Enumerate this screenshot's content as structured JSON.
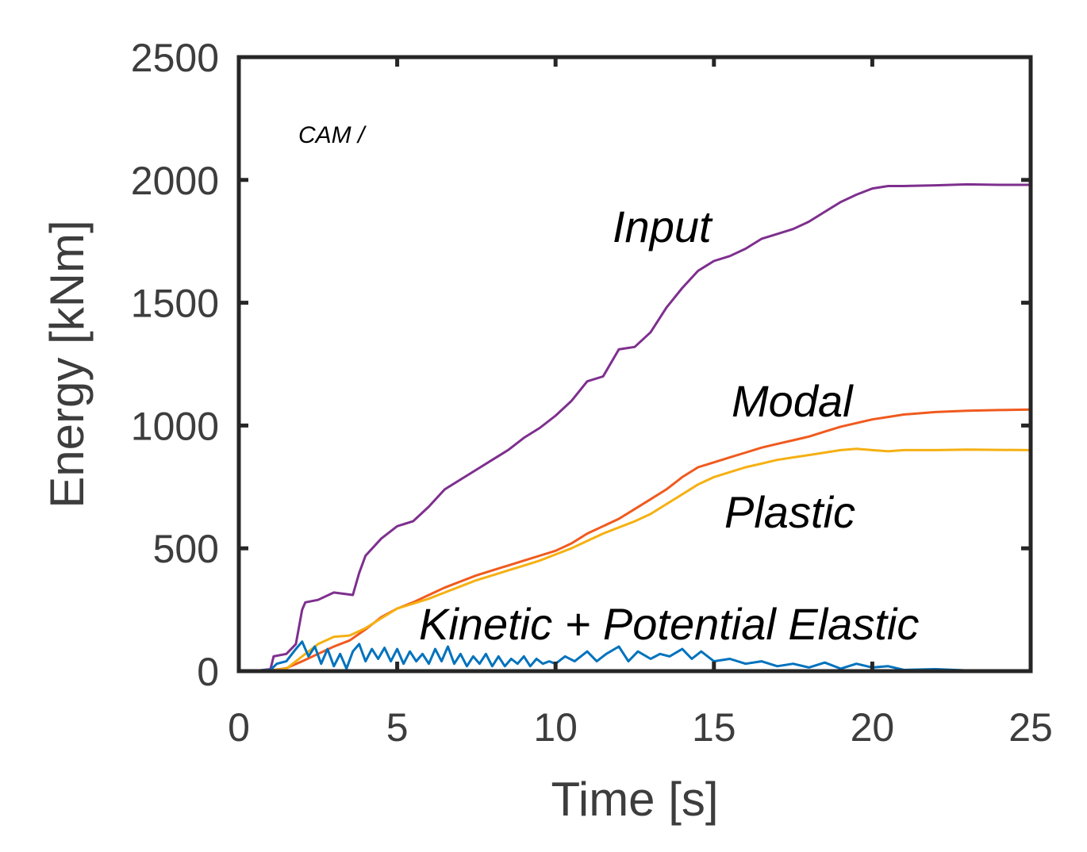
{
  "chart_data": {
    "type": "line",
    "xlabel": "Time [s]",
    "ylabel": "Energy [kNm]",
    "xlim": [
      0,
      25
    ],
    "ylim": [
      0,
      2500
    ],
    "xticks": [
      0,
      5,
      10,
      15,
      20,
      25
    ],
    "yticks": [
      0,
      500,
      1000,
      1500,
      2000,
      2500
    ],
    "grid": false,
    "legend": "inline labels",
    "annotation": "CAM /",
    "series": [
      {
        "name": "Input",
        "color": "#7E2F8E",
        "points": [
          [
            0,
            0
          ],
          [
            0.6,
            2
          ],
          [
            1.0,
            8
          ],
          [
            1.1,
            60
          ],
          [
            1.5,
            70
          ],
          [
            1.8,
            110
          ],
          [
            2.0,
            250
          ],
          [
            2.1,
            280
          ],
          [
            2.5,
            290
          ],
          [
            3.0,
            320
          ],
          [
            3.6,
            310
          ],
          [
            3.8,
            400
          ],
          [
            4.0,
            470
          ],
          [
            4.5,
            540
          ],
          [
            5.0,
            590
          ],
          [
            5.5,
            610
          ],
          [
            6.0,
            670
          ],
          [
            6.5,
            740
          ],
          [
            7.0,
            780
          ],
          [
            7.5,
            820
          ],
          [
            8.0,
            860
          ],
          [
            8.5,
            900
          ],
          [
            9.0,
            950
          ],
          [
            9.5,
            990
          ],
          [
            10.0,
            1040
          ],
          [
            10.5,
            1100
          ],
          [
            11.0,
            1180
          ],
          [
            11.5,
            1200
          ],
          [
            12.0,
            1310
          ],
          [
            12.5,
            1320
          ],
          [
            13.0,
            1380
          ],
          [
            13.5,
            1480
          ],
          [
            14.0,
            1560
          ],
          [
            14.5,
            1630
          ],
          [
            15.0,
            1670
          ],
          [
            15.5,
            1690
          ],
          [
            16.0,
            1720
          ],
          [
            16.5,
            1760
          ],
          [
            17.0,
            1780
          ],
          [
            17.5,
            1800
          ],
          [
            18.0,
            1830
          ],
          [
            18.5,
            1870
          ],
          [
            19.0,
            1910
          ],
          [
            19.5,
            1940
          ],
          [
            20.0,
            1965
          ],
          [
            20.5,
            1975
          ],
          [
            21.0,
            1975
          ],
          [
            22.0,
            1978
          ],
          [
            23.0,
            1982
          ],
          [
            24.0,
            1980
          ],
          [
            25.0,
            1980
          ]
        ]
      },
      {
        "name": "Modal",
        "color": "#F05A1E",
        "points": [
          [
            0,
            0
          ],
          [
            1.0,
            3
          ],
          [
            1.5,
            12
          ],
          [
            2.0,
            40
          ],
          [
            2.5,
            70
          ],
          [
            3.0,
            100
          ],
          [
            3.5,
            125
          ],
          [
            4.0,
            170
          ],
          [
            4.5,
            220
          ],
          [
            5.0,
            255
          ],
          [
            5.5,
            280
          ],
          [
            6.0,
            310
          ],
          [
            6.5,
            340
          ],
          [
            7.0,
            365
          ],
          [
            7.5,
            390
          ],
          [
            8.0,
            410
          ],
          [
            8.5,
            430
          ],
          [
            9.0,
            450
          ],
          [
            9.5,
            470
          ],
          [
            10.0,
            490
          ],
          [
            10.5,
            520
          ],
          [
            11.0,
            560
          ],
          [
            11.5,
            590
          ],
          [
            12.0,
            620
          ],
          [
            12.5,
            660
          ],
          [
            13.0,
            700
          ],
          [
            13.5,
            740
          ],
          [
            14.0,
            790
          ],
          [
            14.5,
            830
          ],
          [
            15.0,
            850
          ],
          [
            15.5,
            870
          ],
          [
            16.0,
            890
          ],
          [
            16.5,
            910
          ],
          [
            17.0,
            925
          ],
          [
            17.5,
            940
          ],
          [
            18.0,
            955
          ],
          [
            18.5,
            975
          ],
          [
            19.0,
            995
          ],
          [
            19.5,
            1010
          ],
          [
            20.0,
            1025
          ],
          [
            20.5,
            1035
          ],
          [
            21.0,
            1045
          ],
          [
            22.0,
            1055
          ],
          [
            23.0,
            1060
          ],
          [
            24.0,
            1063
          ],
          [
            25.0,
            1065
          ]
        ]
      },
      {
        "name": "Plastic",
        "color": "#F5B012",
        "points": [
          [
            0,
            0
          ],
          [
            1.0,
            2
          ],
          [
            1.5,
            10
          ],
          [
            2.0,
            60
          ],
          [
            2.5,
            110
          ],
          [
            3.0,
            140
          ],
          [
            3.5,
            145
          ],
          [
            4.0,
            175
          ],
          [
            4.5,
            215
          ],
          [
            5.0,
            255
          ],
          [
            5.5,
            275
          ],
          [
            6.0,
            295
          ],
          [
            6.5,
            320
          ],
          [
            7.0,
            345
          ],
          [
            7.5,
            370
          ],
          [
            8.0,
            390
          ],
          [
            8.5,
            410
          ],
          [
            9.0,
            430
          ],
          [
            9.5,
            450
          ],
          [
            10.0,
            475
          ],
          [
            10.5,
            500
          ],
          [
            11.0,
            530
          ],
          [
            11.5,
            560
          ],
          [
            12.0,
            585
          ],
          [
            12.5,
            610
          ],
          [
            13.0,
            640
          ],
          [
            13.5,
            680
          ],
          [
            14.0,
            720
          ],
          [
            14.5,
            760
          ],
          [
            15.0,
            790
          ],
          [
            15.5,
            810
          ],
          [
            16.0,
            830
          ],
          [
            16.5,
            845
          ],
          [
            17.0,
            860
          ],
          [
            17.5,
            870
          ],
          [
            18.0,
            880
          ],
          [
            18.5,
            890
          ],
          [
            19.0,
            900
          ],
          [
            19.5,
            905
          ],
          [
            20.0,
            900
          ],
          [
            20.5,
            895
          ],
          [
            21.0,
            900
          ],
          [
            22.0,
            900
          ],
          [
            23.0,
            902
          ],
          [
            24.0,
            901
          ],
          [
            25.0,
            900
          ]
        ]
      },
      {
        "name": "Kinetic + Potential Elastic",
        "color": "#0072BD",
        "points": [
          [
            0,
            0
          ],
          [
            1.0,
            5
          ],
          [
            1.2,
            30
          ],
          [
            1.5,
            40
          ],
          [
            1.8,
            90
          ],
          [
            2.0,
            120
          ],
          [
            2.2,
            60
          ],
          [
            2.4,
            100
          ],
          [
            2.6,
            30
          ],
          [
            2.8,
            90
          ],
          [
            3.0,
            20
          ],
          [
            3.2,
            70
          ],
          [
            3.4,
            10
          ],
          [
            3.6,
            80
          ],
          [
            3.8,
            110
          ],
          [
            4.0,
            40
          ],
          [
            4.2,
            90
          ],
          [
            4.4,
            50
          ],
          [
            4.6,
            95
          ],
          [
            4.8,
            40
          ],
          [
            5.0,
            90
          ],
          [
            5.2,
            30
          ],
          [
            5.4,
            80
          ],
          [
            5.6,
            40
          ],
          [
            5.8,
            70
          ],
          [
            6.0,
            30
          ],
          [
            6.2,
            90
          ],
          [
            6.4,
            40
          ],
          [
            6.6,
            100
          ],
          [
            6.8,
            30
          ],
          [
            7.0,
            70
          ],
          [
            7.2,
            20
          ],
          [
            7.4,
            60
          ],
          [
            7.6,
            30
          ],
          [
            7.8,
            70
          ],
          [
            8.0,
            20
          ],
          [
            8.2,
            60
          ],
          [
            8.4,
            20
          ],
          [
            8.6,
            50
          ],
          [
            8.8,
            30
          ],
          [
            9.0,
            60
          ],
          [
            9.2,
            20
          ],
          [
            9.4,
            50
          ],
          [
            9.6,
            30
          ],
          [
            9.8,
            40
          ],
          [
            10.0,
            30
          ],
          [
            10.3,
            60
          ],
          [
            10.6,
            40
          ],
          [
            11.0,
            80
          ],
          [
            11.3,
            40
          ],
          [
            11.6,
            70
          ],
          [
            12.0,
            100
          ],
          [
            12.3,
            40
          ],
          [
            12.6,
            80
          ],
          [
            13.0,
            50
          ],
          [
            13.3,
            70
          ],
          [
            13.6,
            60
          ],
          [
            14.0,
            90
          ],
          [
            14.3,
            50
          ],
          [
            14.6,
            80
          ],
          [
            15.0,
            40
          ],
          [
            15.5,
            50
          ],
          [
            16.0,
            30
          ],
          [
            16.5,
            40
          ],
          [
            17.0,
            20
          ],
          [
            17.5,
            30
          ],
          [
            18.0,
            15
          ],
          [
            18.5,
            35
          ],
          [
            19.0,
            10
          ],
          [
            19.5,
            30
          ],
          [
            20.0,
            15
          ],
          [
            20.5,
            20
          ],
          [
            21.0,
            5
          ],
          [
            22.0,
            8
          ],
          [
            23.0,
            3
          ],
          [
            24.0,
            2
          ],
          [
            25.0,
            1
          ]
        ]
      }
    ],
    "labels": [
      {
        "text": "Input",
        "series": "Input"
      },
      {
        "text": "Modal",
        "series": "Modal"
      },
      {
        "text": "Plastic",
        "series": "Plastic"
      },
      {
        "text": "Kinetic + Potential Elastic",
        "series": "Kinetic + Potential Elastic"
      }
    ]
  }
}
